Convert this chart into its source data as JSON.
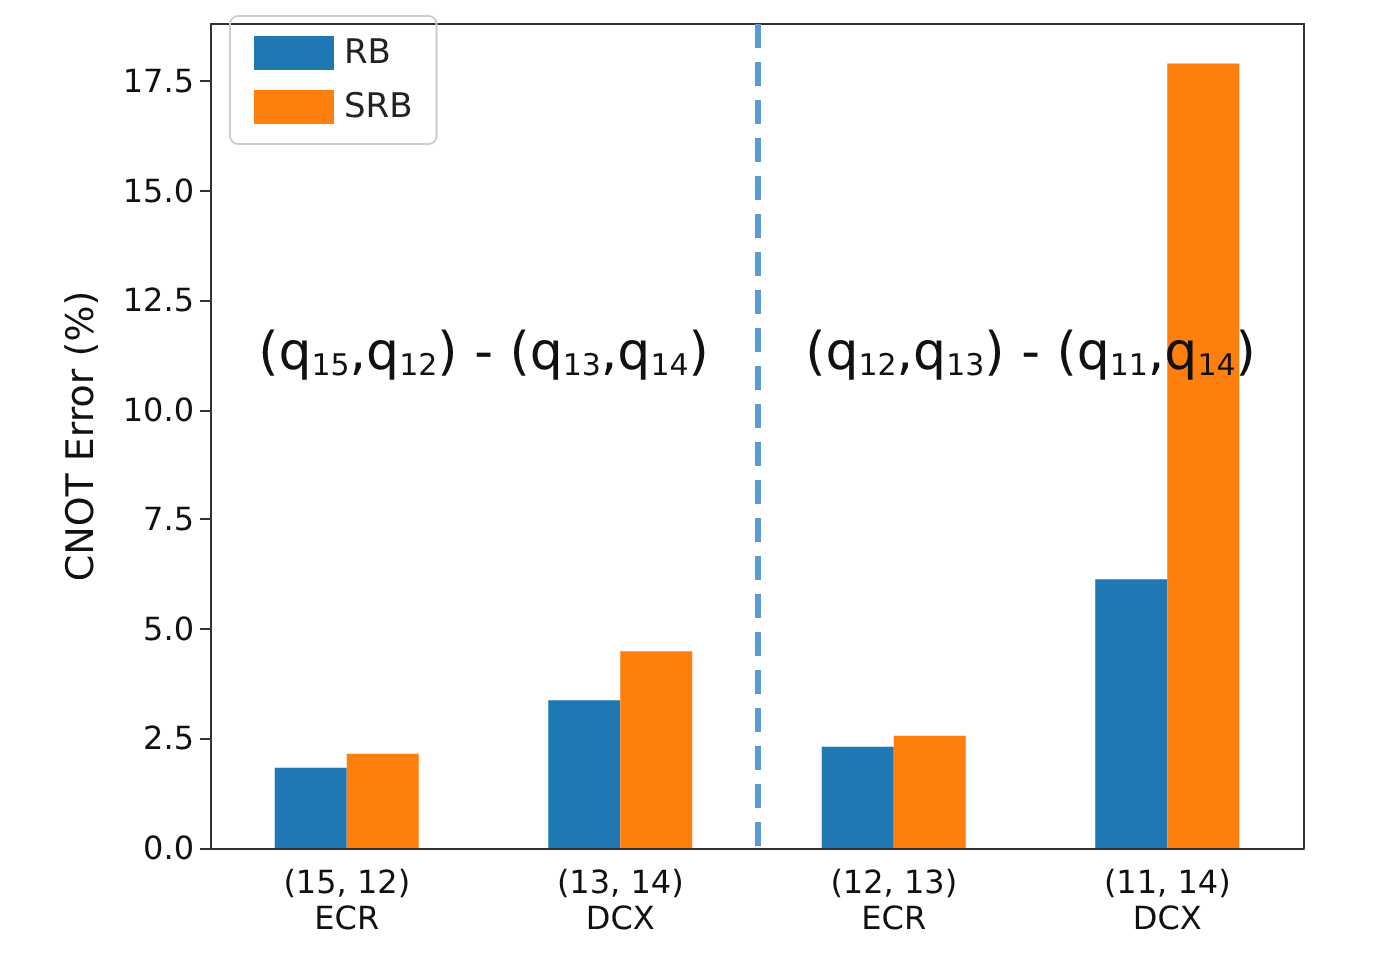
{
  "chart_data": {
    "type": "bar",
    "ylabel": "CNOT Error (%)",
    "categories": [
      "(15, 12)\nECR",
      "(13, 14)\nDCX",
      "(12, 13)\nECR",
      "(11, 14)\nDCX"
    ],
    "series": [
      {
        "name": "RB",
        "color": "#1f77b4",
        "values": [
          1.83,
          3.37,
          2.31,
          6.13
        ]
      },
      {
        "name": "SRB",
        "color": "#ff7f0e",
        "values": [
          2.15,
          4.49,
          2.56,
          17.9
        ]
      }
    ],
    "ylim": [
      0,
      18.8
    ],
    "yticks": [
      {
        "value": 0,
        "label": "0.0"
      },
      {
        "value": 2.5,
        "label": "2.5"
      },
      {
        "value": 5,
        "label": "5.0"
      },
      {
        "value": 7.5,
        "label": "7.5"
      },
      {
        "value": 10,
        "label": "10.0"
      },
      {
        "value": 12.5,
        "label": "12.5"
      },
      {
        "value": 15,
        "label": "15.0"
      },
      {
        "value": 17.5,
        "label": "17.5"
      }
    ],
    "annotations": [
      "(q$_{15}$,q$_{12}$) - (q$_{13}$,q$_{14}$)",
      "(q$_{12}$,q$_{13}$) - (q$_{11}$,q$_{14}$)"
    ],
    "legend": "top left",
    "grid": false
  }
}
